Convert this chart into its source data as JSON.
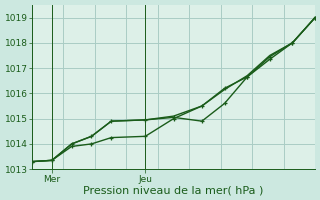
{
  "background_color": "#cce8e0",
  "grid_color": "#aaccc4",
  "plot_bg_color": "#ddf0e8",
  "line_color": "#1a5c1a",
  "xlabel": "Pression niveau de la mer( hPa )",
  "ylim": [
    1013.0,
    1019.5
  ],
  "yticks": [
    1013,
    1014,
    1015,
    1016,
    1017,
    1018,
    1019
  ],
  "xlim": [
    0.0,
    1.0
  ],
  "xtick_positions": [
    0.07,
    0.4
  ],
  "xtick_labels": [
    "Mer",
    "Jeu"
  ],
  "vline_positions": [
    0.07,
    0.4
  ],
  "num_xgrid": 9,
  "series1_x": [
    0.0,
    0.07,
    0.14,
    0.21,
    0.28,
    0.4,
    0.5,
    0.6,
    0.68,
    0.76,
    0.84,
    0.92,
    1.0
  ],
  "series1_y": [
    1013.3,
    1013.35,
    1013.9,
    1014.0,
    1014.25,
    1014.3,
    1015.0,
    1015.5,
    1016.2,
    1016.65,
    1017.45,
    1018.0,
    1019.0
  ],
  "series2_x": [
    0.0,
    0.07,
    0.14,
    0.21,
    0.28,
    0.4,
    0.5,
    0.6,
    0.68,
    0.76,
    0.84,
    0.92,
    1.0
  ],
  "series2_y": [
    1013.3,
    1013.35,
    1014.0,
    1014.3,
    1014.9,
    1014.95,
    1015.05,
    1014.9,
    1015.6,
    1016.65,
    1017.35,
    1018.0,
    1019.0
  ],
  "series3_x": [
    0.0,
    0.07,
    0.14,
    0.21,
    0.28,
    0.4,
    0.5,
    0.6,
    0.68,
    0.76,
    0.84,
    0.92,
    1.0
  ],
  "series3_y": [
    1013.3,
    1013.35,
    1014.0,
    1014.3,
    1014.9,
    1014.95,
    1015.1,
    1015.5,
    1016.15,
    1016.7,
    1017.5,
    1018.0,
    1019.0
  ],
  "marker_size": 3.5,
  "linewidth": 1.0,
  "tick_labelsize": 6.5,
  "xlabel_fontsize": 8
}
